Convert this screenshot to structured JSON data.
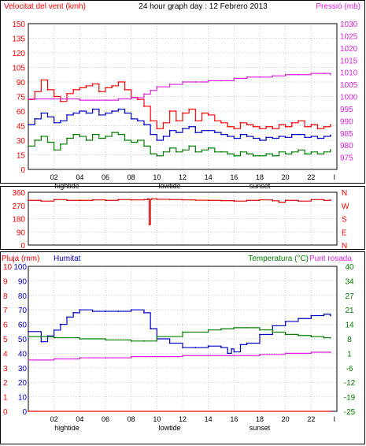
{
  "chart_data": [
    {
      "type": "line",
      "title": "24 hour graph day : 12 Febrero 2013",
      "ylabel": "Velocitat del vent (kmh)",
      "y2label": "Pressió (mb)",
      "ylim": [
        0,
        150
      ],
      "yticks": [
        "0",
        "15",
        "30",
        "45",
        "60",
        "75",
        "90",
        "105",
        "120",
        "135",
        "150"
      ],
      "y2lim": [
        970,
        1030
      ],
      "y2ticks": [
        "975",
        "980",
        "985",
        "990",
        "995",
        "1000",
        "1005",
        "1010",
        "1015",
        "1020",
        "1025",
        "1030"
      ],
      "xlim": [
        0,
        24
      ],
      "xticks": [
        "02",
        "04",
        "06",
        "08",
        "10",
        "12",
        "14",
        "16",
        "18",
        "20",
        "22"
      ],
      "xtick_last": "I",
      "markers": [
        "hightide",
        "lowtide",
        "sunset"
      ],
      "grid": true,
      "series": [
        {
          "key": "gust",
          "color": "#ff0000",
          "axis": "left",
          "x": [
            0,
            0.5,
            1,
            1.5,
            2,
            2.5,
            3,
            3.5,
            4,
            4.5,
            5,
            5.5,
            6,
            6.5,
            7,
            7.5,
            8,
            8.5,
            9,
            9.5,
            10,
            10.5,
            11,
            11.5,
            12,
            12.5,
            13,
            13.5,
            14,
            14.5,
            15,
            15.5,
            16,
            16.5,
            17,
            17.5,
            18,
            18.5,
            19,
            19.5,
            20,
            20.5,
            21,
            21.5,
            22,
            22.5,
            23,
            23.5
          ],
          "values": [
            72,
            80,
            92,
            82,
            75,
            70,
            78,
            82,
            84,
            86,
            88,
            80,
            84,
            86,
            90,
            82,
            74,
            72,
            65,
            50,
            42,
            48,
            60,
            50,
            58,
            62,
            50,
            58,
            56,
            50,
            48,
            44,
            42,
            48,
            46,
            44,
            42,
            44,
            42,
            46,
            44,
            48,
            50,
            44,
            46,
            42,
            44,
            46
          ]
        },
        {
          "key": "avg",
          "color": "#0000cc",
          "axis": "left",
          "x": [
            0,
            0.5,
            1,
            1.5,
            2,
            2.5,
            3,
            3.5,
            4,
            4.5,
            5,
            5.5,
            6,
            6.5,
            7,
            7.5,
            8,
            8.5,
            9,
            9.5,
            10,
            10.5,
            11,
            11.5,
            12,
            12.5,
            13,
            13.5,
            14,
            14.5,
            15,
            15.5,
            16,
            16.5,
            17,
            17.5,
            18,
            18.5,
            19,
            19.5,
            20,
            20.5,
            21,
            21.5,
            22,
            22.5,
            23,
            23.5
          ],
          "values": [
            46,
            52,
            58,
            54,
            48,
            50,
            56,
            58,
            60,
            58,
            62,
            56,
            58,
            60,
            62,
            58,
            52,
            50,
            46,
            36,
            30,
            34,
            40,
            38,
            42,
            44,
            38,
            40,
            40,
            38,
            36,
            34,
            32,
            36,
            34,
            32,
            30,
            33,
            32,
            34,
            33,
            36,
            36,
            33,
            34,
            32,
            34,
            35
          ]
        },
        {
          "key": "min",
          "color": "#008000",
          "axis": "left",
          "x": [
            0,
            0.5,
            1,
            1.5,
            2,
            2.5,
            3,
            3.5,
            4,
            4.5,
            5,
            5.5,
            6,
            6.5,
            7,
            7.5,
            8,
            8.5,
            9,
            9.5,
            10,
            10.5,
            11,
            11.5,
            12,
            12.5,
            13,
            13.5,
            14,
            14.5,
            15,
            15.5,
            16,
            16.5,
            17,
            17.5,
            18,
            18.5,
            19,
            19.5,
            20,
            20.5,
            21,
            21.5,
            22,
            22.5,
            23,
            23.5
          ],
          "values": [
            24,
            30,
            34,
            28,
            20,
            26,
            32,
            36,
            34,
            30,
            36,
            32,
            34,
            38,
            36,
            30,
            28,
            30,
            24,
            16,
            14,
            18,
            22,
            18,
            20,
            24,
            18,
            20,
            22,
            18,
            18,
            16,
            14,
            18,
            16,
            14,
            14,
            16,
            14,
            18,
            16,
            18,
            20,
            16,
            18,
            16,
            18,
            20
          ]
        },
        {
          "key": "pressure",
          "color": "#e020e0",
          "axis": "right",
          "x": [
            0,
            2,
            4,
            6,
            7,
            8,
            9,
            9.5,
            10,
            11,
            12,
            13,
            14,
            15,
            16,
            17,
            18,
            19,
            20,
            21,
            22,
            23,
            23.5
          ],
          "values": [
            999,
            999,
            998.5,
            998.5,
            999,
            999.5,
            1001,
            1002.5,
            1004,
            1005,
            1006,
            1006,
            1006.5,
            1006.5,
            1007.5,
            1008,
            1008,
            1008.5,
            1009,
            1009,
            1009.5,
            1009.5,
            1009
          ]
        }
      ]
    },
    {
      "type": "line",
      "ylim": [
        0,
        360
      ],
      "yticks": [
        "0",
        "90",
        "180",
        "270",
        "360"
      ],
      "y2ticks": [
        "N",
        "E",
        "S",
        "W",
        "N"
      ],
      "xlim": [
        0,
        24
      ],
      "grid": true,
      "series": [
        {
          "key": "direction",
          "color": "#dd0000",
          "x": [
            0,
            1,
            2,
            3,
            4,
            5,
            6,
            7,
            8,
            9,
            9.3,
            9.4,
            9.5,
            9.6,
            10,
            11,
            12,
            13,
            14,
            15,
            16,
            17,
            18,
            19,
            19.5,
            20,
            21,
            22,
            23,
            23.5
          ],
          "values": [
            305,
            300,
            310,
            305,
            305,
            308,
            305,
            310,
            308,
            310,
            315,
            140,
            310,
            315,
            312,
            310,
            308,
            306,
            305,
            303,
            300,
            305,
            308,
            302,
            292,
            305,
            300,
            310,
            305,
            308
          ]
        }
      ]
    },
    {
      "type": "line",
      "ylabel": "Pluja (mm)",
      "ylabel2": "Humitat",
      "y2label": "Temperatura (°C)",
      "y2label2": "Punt rosada",
      "ylim": [
        0,
        100
      ],
      "yticks_rain": [
        "0",
        "1",
        "2",
        "3",
        "4",
        "5",
        "6",
        "7",
        "8",
        "9",
        "10"
      ],
      "yticks_hum": [
        "0",
        "10",
        "20",
        "30",
        "40",
        "50",
        "60",
        "70",
        "80",
        "90",
        "100"
      ],
      "y2lim": [
        -25,
        40
      ],
      "y2ticks": [
        "-25",
        "-19",
        "-12",
        "-6",
        "1",
        "8",
        "14",
        "21",
        "27",
        "34",
        "40"
      ],
      "xlim": [
        0,
        24
      ],
      "xticks": [
        "02",
        "04",
        "06",
        "08",
        "10",
        "12",
        "14",
        "16",
        "18",
        "20",
        "22"
      ],
      "xtick_last": "I",
      "markers": [
        "hightide",
        "lowtide",
        "sunset"
      ],
      "grid": true,
      "series": [
        {
          "key": "humidity",
          "color": "#0000cc",
          "axis": "left",
          "x": [
            0,
            1,
            1.5,
            2,
            2.5,
            3,
            3.5,
            4,
            5,
            6,
            7,
            8,
            9,
            9.5,
            10,
            11,
            12,
            13,
            14,
            15,
            15.5,
            15.8,
            16,
            16.5,
            17,
            18,
            19,
            20,
            21,
            22,
            23,
            23.5
          ],
          "values": [
            55,
            48,
            52,
            56,
            60,
            65,
            68,
            70,
            69,
            69,
            69,
            70,
            68,
            57,
            50,
            47,
            44,
            44,
            45,
            44,
            40,
            43,
            41,
            46,
            47,
            53,
            59,
            62,
            64,
            66,
            67,
            66
          ]
        },
        {
          "key": "temperature",
          "color": "#008000",
          "axis": "right",
          "x": [
            0,
            2,
            4,
            6,
            8,
            9,
            10,
            12,
            14,
            15,
            16,
            17,
            18,
            19,
            20,
            21,
            22,
            23,
            23.5
          ],
          "values": [
            8.5,
            8,
            7.5,
            7,
            6.5,
            6.5,
            8.5,
            10.5,
            11.5,
            12,
            12.5,
            12.5,
            11.5,
            10.5,
            9.5,
            9,
            8.5,
            8,
            8
          ]
        },
        {
          "key": "dewpoint",
          "color": "#e020e0",
          "axis": "right",
          "x": [
            0,
            2,
            4,
            6,
            8,
            10,
            12,
            14,
            16,
            18,
            20,
            22,
            23.5
          ],
          "values": [
            -2,
            -1.5,
            -1,
            -1,
            -0.5,
            -0.5,
            0,
            0,
            0,
            0.5,
            1,
            1.5,
            1.5
          ]
        },
        {
          "key": "rain",
          "color": "#ff0000",
          "axis": "rain",
          "x": [
            0,
            23.5
          ],
          "values": [
            0,
            0
          ]
        }
      ]
    }
  ]
}
